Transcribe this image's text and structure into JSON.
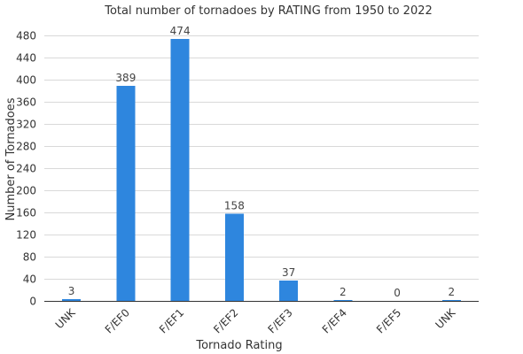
{
  "chart_data": {
    "type": "bar",
    "title": "Total number of tornadoes by RATING from 1950 to 2022",
    "xlabel": "Tornado Rating",
    "ylabel": "Number of Tornadoes",
    "categories": [
      "UNK",
      "F/EF0",
      "F/EF1",
      "F/EF2",
      "F/EF3",
      "F/EF4",
      "F/EF5",
      "UNK"
    ],
    "values": [
      3,
      389,
      474,
      158,
      37,
      2,
      0,
      2
    ],
    "ylim": [
      0,
      480
    ],
    "yticks": [
      0,
      40,
      80,
      120,
      160,
      200,
      240,
      280,
      320,
      360,
      400,
      440,
      480
    ],
    "grid": true,
    "bar_color": "#2e86de",
    "show_data_labels": true
  }
}
